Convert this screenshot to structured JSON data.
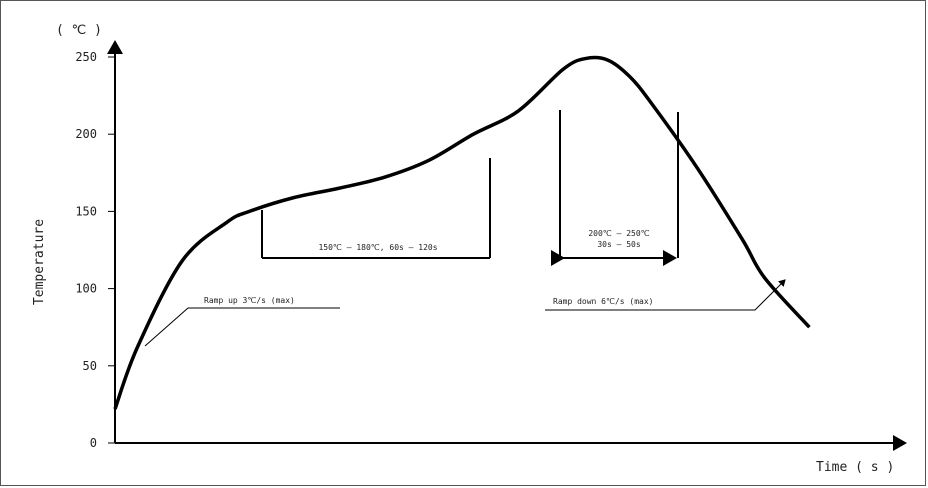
{
  "chart_data": {
    "type": "line",
    "y_unit": "( ℃ )",
    "xlabel": "Time ( s )",
    "ylabel": "Temperature",
    "ylim": [
      0,
      250
    ],
    "yticks": [
      0,
      50,
      100,
      150,
      200,
      250
    ],
    "series": [
      {
        "values": [
          [
            0,
            22
          ],
          [
            1,
            62
          ],
          [
            3,
            118
          ],
          [
            5,
            143
          ],
          [
            6,
            150
          ],
          [
            8,
            159
          ],
          [
            10,
            165
          ],
          [
            12,
            172
          ],
          [
            14,
            183
          ],
          [
            16,
            200
          ],
          [
            18,
            215
          ],
          [
            20,
            242
          ],
          [
            21,
            249
          ],
          [
            22,
            248
          ],
          [
            23,
            237
          ],
          [
            24,
            219
          ],
          [
            26,
            178
          ],
          [
            28,
            132
          ],
          [
            29,
            107
          ],
          [
            31,
            75
          ]
        ]
      }
    ],
    "annotations": [
      {
        "text": "Ramp up 3℃/s (max)"
      },
      {
        "text": "150℃ — 180℃, 60s — 120s"
      },
      {
        "text": "200℃ — 250℃"
      },
      {
        "text": "30s — 50s"
      },
      {
        "text": "Ramp down 6℃/s (max)"
      }
    ],
    "grid": false,
    "legend": "none"
  }
}
